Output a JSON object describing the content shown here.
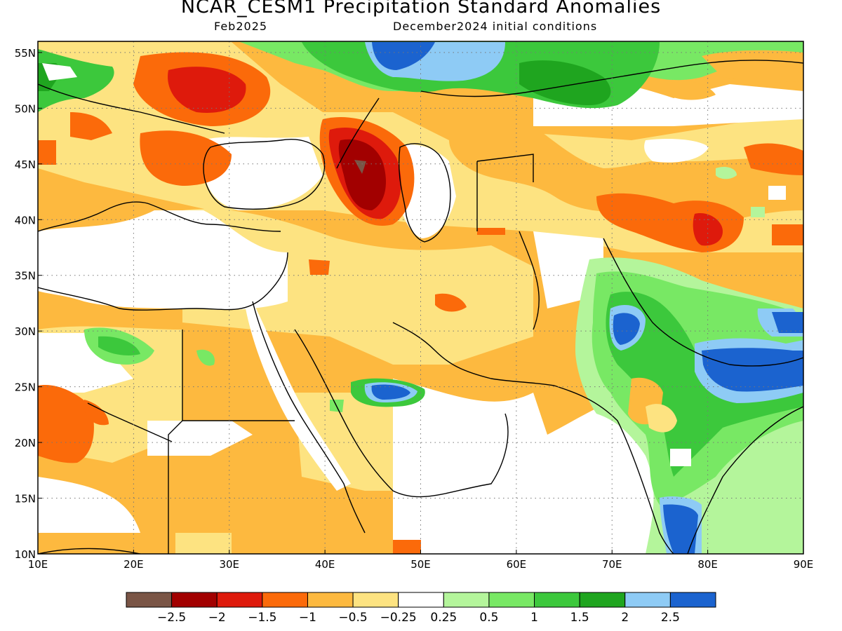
{
  "title": "NCAR_CESM1 Precipitation Standard Anomalies",
  "subtitle_left": "Feb2025",
  "subtitle_right": "December2024 initial conditions",
  "map": {
    "lon_range": [
      10,
      90
    ],
    "lat_range": [
      10,
      56
    ],
    "lon_ticks": [
      "10E",
      "20E",
      "30E",
      "40E",
      "50E",
      "60E",
      "70E",
      "80E",
      "90E"
    ],
    "lat_ticks": [
      "10N",
      "15N",
      "20N",
      "25N",
      "30N",
      "35N",
      "40N",
      "45N",
      "50N",
      "55N"
    ],
    "gridlines": "dotted"
  },
  "colorbar": {
    "colors": [
      "#7a5546",
      "#a20000",
      "#de1a0c",
      "#fb6a0a",
      "#fdb93f",
      "#fde381",
      "#ffffff",
      "#b4f59b",
      "#78e864",
      "#3cc83c",
      "#1fa51f",
      "#8ecbf5",
      "#1b63cf"
    ],
    "labels": [
      "−2.5",
      "−2",
      "−1.5",
      "−1",
      "−0.5",
      "−0.25",
      "0.25",
      "0.5",
      "1",
      "1.5",
      "2",
      "2.5"
    ]
  },
  "colors": {
    "very_dry": "#7a5546",
    "dry_strong": "#a20000",
    "dry": "#de1a0c",
    "dry_mod": "#fb6a0a",
    "dry_light": "#fdb93f",
    "dry_weak": "#fde381",
    "neutral": "#ffffff",
    "wet_weak": "#b4f59b",
    "wet_light": "#78e864",
    "wet_mod": "#3cc83c",
    "wet": "#1fa51f",
    "wet_strong": "#8ecbf5",
    "very_wet": "#1b63cf"
  }
}
